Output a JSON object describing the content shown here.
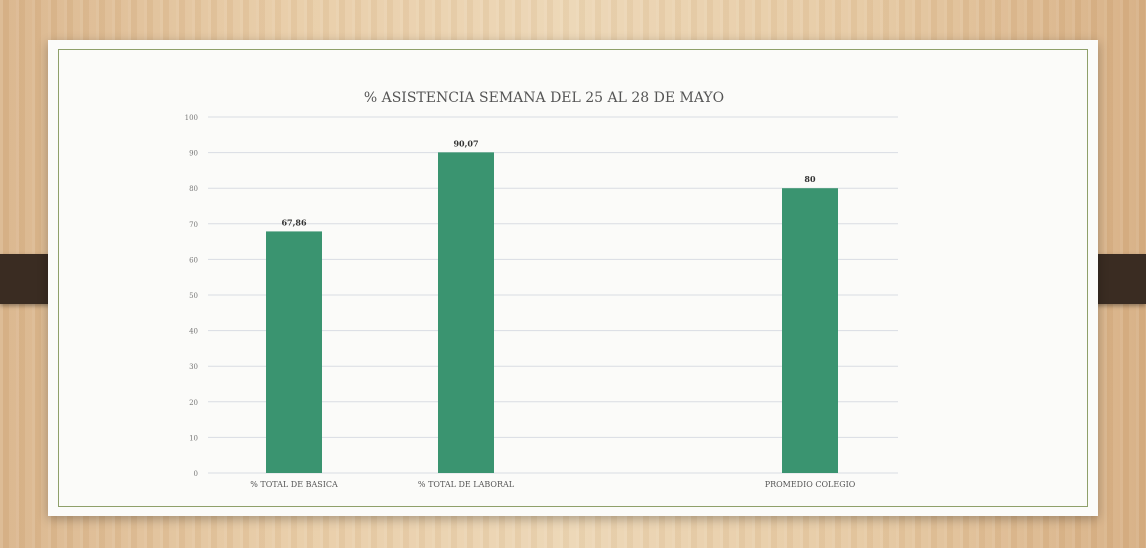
{
  "slide": {
    "colors": {
      "bar": "#3a9470",
      "gridline": "#d9dde3",
      "frame": "#8fa06a",
      "clip": "#3a2c22"
    }
  },
  "chart_data": {
    "type": "bar",
    "title": "% ASISTENCIA SEMANA DEL 25 AL 28 DE MAYO",
    "xlabel": "",
    "ylabel": "",
    "categories": [
      "% TOTAL DE BASICA",
      "% TOTAL DE LABORAL",
      "PROMEDIO COLEGIO"
    ],
    "values": [
      67.86,
      90.07,
      80
    ],
    "data_labels": [
      "67,86",
      "90,07",
      "80"
    ],
    "ylim": [
      0,
      100
    ],
    "yticks": [
      0,
      10,
      20,
      30,
      40,
      50,
      60,
      70,
      80,
      90,
      100
    ],
    "grid": true,
    "legend": "none"
  }
}
